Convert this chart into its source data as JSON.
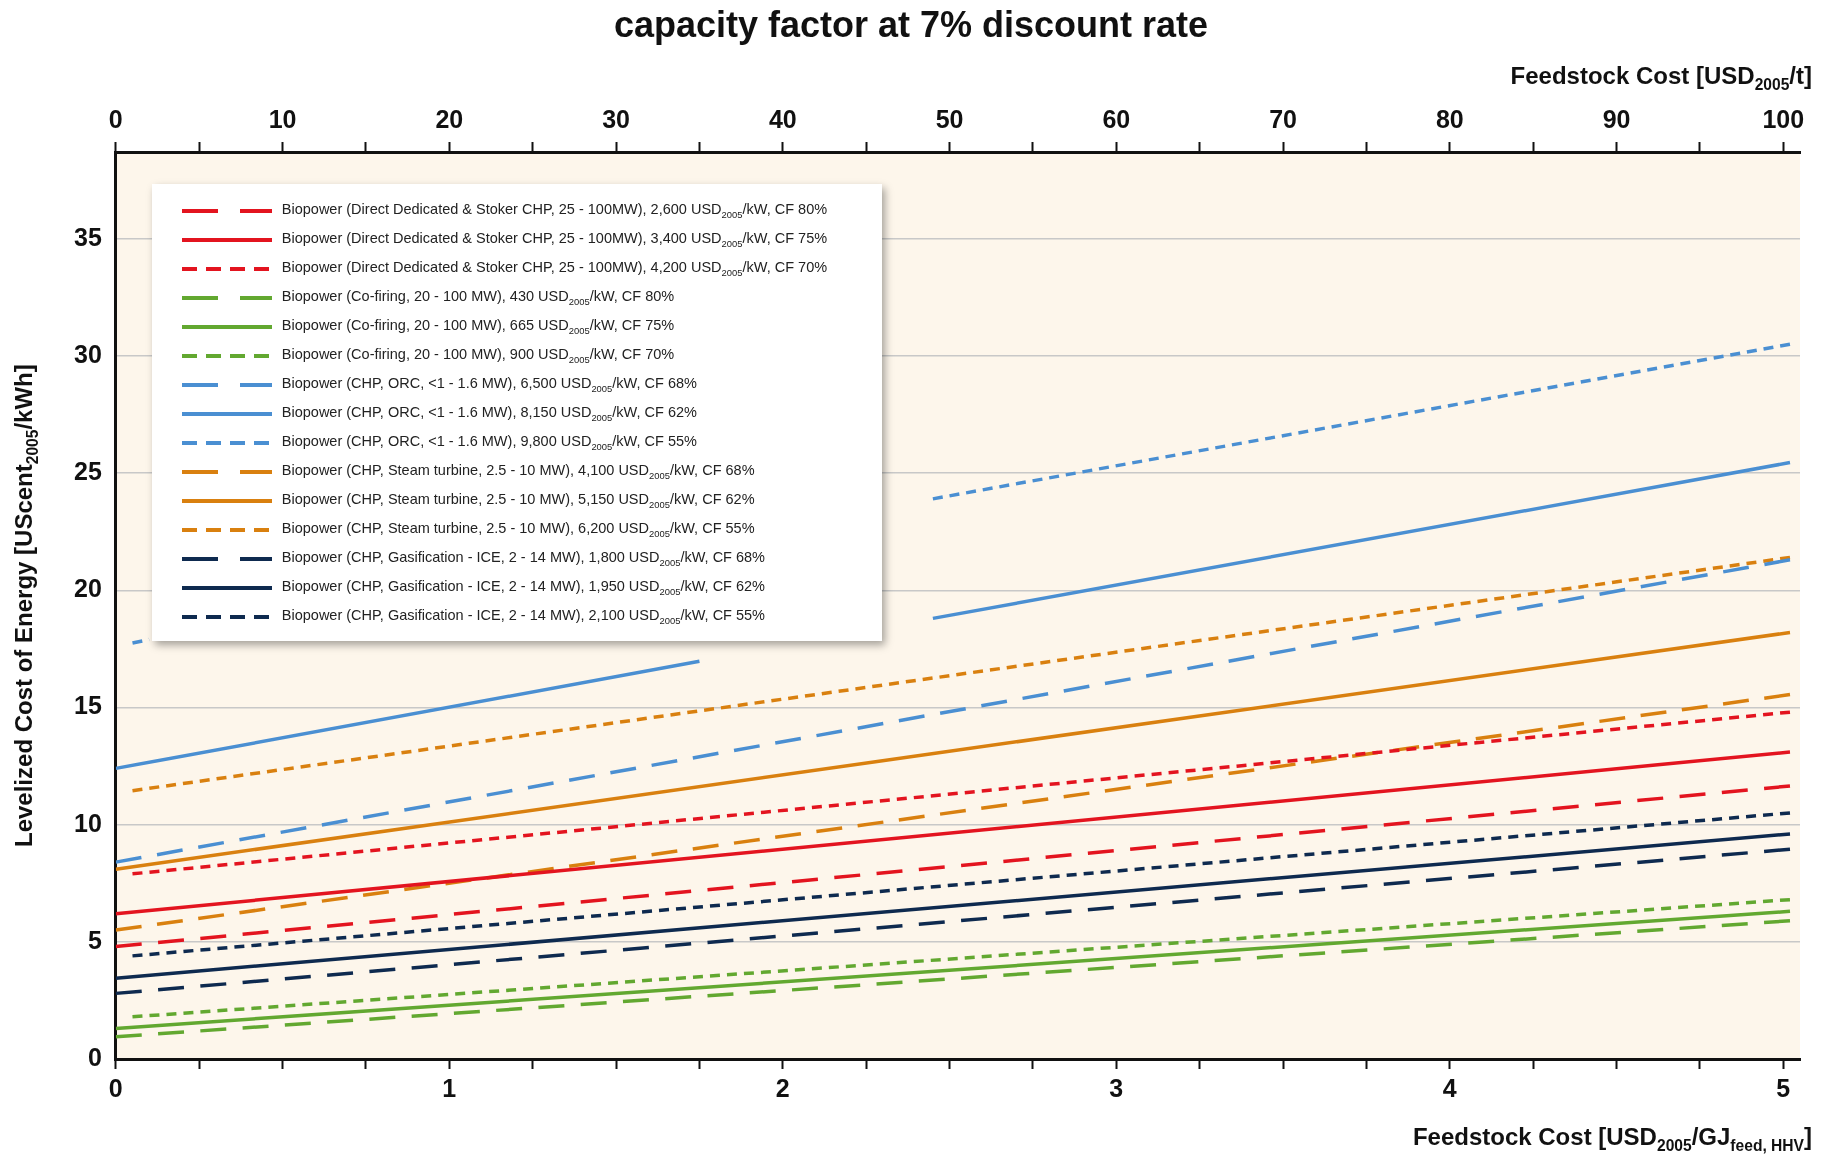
{
  "chart_data": {
    "type": "line",
    "title": "capacity factor at 7% discount rate",
    "xlabel": "Feedstock Cost [USD$_{2005}$/GJ$_{feed, HHV}$]",
    "x2label": "Feedstock Cost [USD$_{2005}$/t]",
    "ylabel": "Levelized Cost of Energy [UScent$_{2005}$/kWh]",
    "xlim": [
      0,
      5.05
    ],
    "xticks": [
      0,
      {
        "value": 0.25,
        "label": null
      },
      {
        "value": 0.5,
        "label": null
      },
      {
        "value": 0.75,
        "label": null
      },
      1,
      {
        "value": 1.25,
        "label": null
      },
      {
        "value": 1.5,
        "label": null
      },
      {
        "value": 1.75,
        "label": null
      },
      2,
      {
        "value": 2.25,
        "label": null
      },
      {
        "value": 2.5,
        "label": null
      },
      {
        "value": 2.75,
        "label": null
      },
      3,
      {
        "value": 3.25,
        "label": null
      },
      {
        "value": 3.5,
        "label": null
      },
      {
        "value": 3.75,
        "label": null
      },
      4,
      {
        "value": 4.25,
        "label": null
      },
      {
        "value": 4.5,
        "label": null
      },
      {
        "value": 4.75,
        "label": null
      },
      5
    ],
    "x2lim": [
      0,
      101
    ],
    "x2ticks": [
      0,
      {
        "value": 5,
        "label": null
      },
      10,
      {
        "value": 15,
        "label": null
      },
      20,
      {
        "value": 25,
        "label": null
      },
      30,
      {
        "value": 35,
        "label": null
      },
      40,
      {
        "value": 45,
        "label": null
      },
      50,
      {
        "value": 55,
        "label": null
      },
      60,
      {
        "value": 65,
        "label": null
      },
      70,
      {
        "value": 75,
        "label": null
      },
      80,
      {
        "value": 85,
        "label": null
      },
      90,
      {
        "value": 95,
        "label": null
      },
      100
    ],
    "ylim": [
      0,
      38.7
    ],
    "yticks": [
      0,
      5,
      10,
      15,
      20,
      25,
      30,
      35
    ],
    "grid": "y",
    "legend": "top left",
    "series": [
      {
        "name": "Biopower (Direct Dedicated & Stoker CHP, 25 - 100MW), 2,600 USD$_{2005}$/kW, CF 80%",
        "color": "#e3141f",
        "line_style": "dashed",
        "x": [
          0,
          5.02
        ],
        "values": [
          4.8,
          11.65
        ]
      },
      {
        "name": "Biopower (Direct Dedicated & Stoker CHP, 25 - 100MW), 3,400 USD$_{2005}$/kW, CF 75%",
        "color": "#e3141f",
        "line_style": "solid",
        "x": [
          0,
          5.02
        ],
        "values": [
          6.2,
          13.1
        ]
      },
      {
        "name": "Biopower (Direct Dedicated & Stoker CHP, 25 - 100MW), 4,200 USD$_{2005}$/kW, CF 70%",
        "color": "#e3141f",
        "line_style": "dotted",
        "x": [
          0.05,
          5.02
        ],
        "values": [
          7.9,
          14.8
        ]
      },
      {
        "name": "Biopower (Co-firing, 20 - 100 MW), 430 USD$_{2005}$/kW, CF 80%",
        "color": "#62a830",
        "line_style": "dashed",
        "x": [
          0,
          5.02
        ],
        "values": [
          0.95,
          5.9
        ]
      },
      {
        "name": "Biopower (Co-firing, 20 - 100 MW), 665 USD$_{2005}$/kW, CF 75%",
        "color": "#62a830",
        "line_style": "solid",
        "x": [
          0,
          5.02
        ],
        "values": [
          1.3,
          6.3
        ]
      },
      {
        "name": "Biopower (Co-firing, 20 - 100 MW), 900 USD$_{2005}$/kW, CF 70%",
        "color": "#62a830",
        "line_style": "dotted",
        "x": [
          0.05,
          5.02
        ],
        "values": [
          1.8,
          6.8
        ]
      },
      {
        "name": "Biopower (CHP, ORC, <1 - 1.6 MW), 6,500 USD$_{2005}$/kW, CF 68%",
        "color": "#4a8fd2",
        "line_style": "dashed",
        "x": [
          0,
          5.02
        ],
        "values": [
          8.4,
          21.3
        ]
      },
      {
        "name": "Biopower (CHP, ORC, <1 - 1.6 MW), 8,150 USD$_{2005}$/kW, CF 62%",
        "color": "#4a8fd2",
        "line_style": "solid",
        "x": [
          0,
          1.75,
          2.2,
          2.45,
          5.02
        ],
        "values": [
          12.4,
          16.97,
          null,
          18.8,
          25.45
        ]
      },
      {
        "name": "Biopower (CHP, ORC, <1 - 1.6 MW), 9,800 USD$_{2005}$/kW, CF 55%",
        "color": "#4a8fd2",
        "line_style": "dotted",
        "x": [
          0.05,
          0.1,
          1,
          2.45,
          5.02
        ],
        "values": [
          17.75,
          17.9,
          null,
          23.9,
          30.5
        ]
      },
      {
        "name": "Biopower (CHP, Steam turbine, 2.5 - 10 MW), 4,100 USD$_{2005}$/kW, CF 68%",
        "color": "#d9800f",
        "line_style": "dashed",
        "x": [
          0,
          5.02
        ],
        "values": [
          5.5,
          15.55
        ]
      },
      {
        "name": "Biopower (CHP, Steam turbine, 2.5 - 10 MW), 5,150 USD$_{2005}$/kW, CF 62%",
        "color": "#d9800f",
        "line_style": "solid",
        "x": [
          0,
          5.02
        ],
        "values": [
          8.1,
          18.2
        ]
      },
      {
        "name": "Biopower (CHP, Steam turbine, 2.5 - 10 MW), 6,200 USD$_{2005}$/kW, CF 55%",
        "color": "#d9800f",
        "line_style": "dotted",
        "x": [
          0.05,
          5.02
        ],
        "values": [
          11.45,
          21.4
        ]
      },
      {
        "name": "Biopower (CHP, Gasification  - ICE, 2 - 14 MW), 1,800 USD$_{2005}$/kW, CF 68%",
        "color": "#0e2a4f",
        "line_style": "dashed",
        "x": [
          0,
          5.02
        ],
        "values": [
          2.8,
          8.95
        ]
      },
      {
        "name": "Biopower (CHP, Gasification  - ICE, 2 - 14 MW), 1,950 USD$_{2005}$/kW, CF 62%",
        "color": "#0e2a4f",
        "line_style": "solid",
        "x": [
          0,
          5.02
        ],
        "values": [
          3.45,
          9.6
        ]
      },
      {
        "name": "Biopower (CHP, Gasification  - ICE, 2 - 14 MW), 2,100 USD$_{2005}$/kW, CF 55%",
        "color": "#0e2a4f",
        "line_style": "dotted",
        "x": [
          0.05,
          5.02
        ],
        "values": [
          4.4,
          10.5
        ]
      }
    ]
  }
}
